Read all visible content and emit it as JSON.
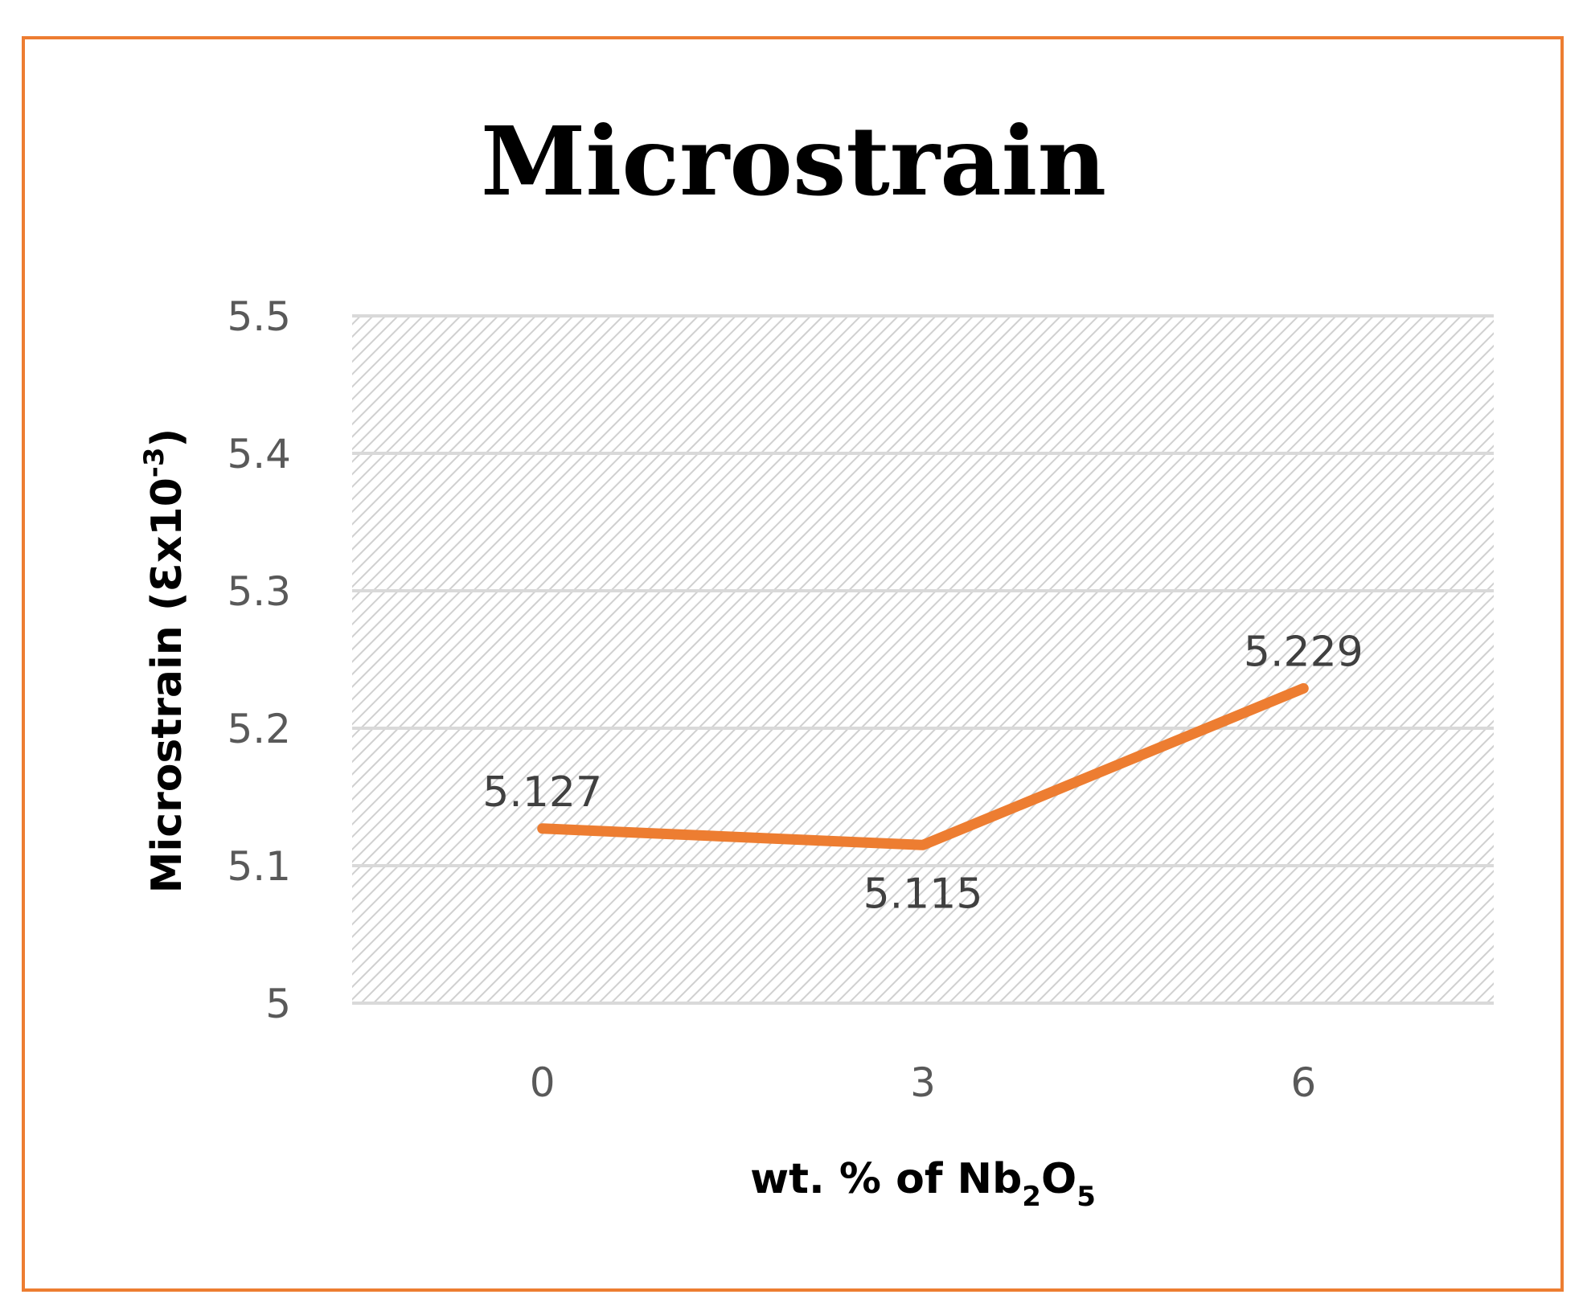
{
  "chart_data": {
    "type": "line",
    "title": "Microstrain",
    "xlabel": {
      "prefix": "wt. % of Nb",
      "sub1": "2",
      "mid": "O",
      "sub2": "5"
    },
    "ylabel": {
      "base": "Microstrain (Ɛx10",
      "sup": "-3",
      "close": ")"
    },
    "categories": [
      "0",
      "3",
      "6"
    ],
    "series": [
      {
        "name": "Microstrain",
        "values": [
          5.127,
          5.115,
          5.229
        ],
        "labels": [
          "5.127",
          "5.115",
          "5.229"
        ]
      }
    ],
    "ylim": [
      5,
      5.5
    ],
    "yticks": [
      5,
      5.1,
      5.2,
      5.3,
      5.4,
      5.5
    ],
    "ytick_labels": [
      "5",
      "5.1",
      "5.2",
      "5.3",
      "5.4",
      "5.5"
    ],
    "grid": true,
    "legend": "none",
    "colors": {
      "line": "#ED7D31",
      "border": "#ED7D31",
      "grid": "#D9D9D9",
      "hatch": "#D0D0D0"
    }
  }
}
